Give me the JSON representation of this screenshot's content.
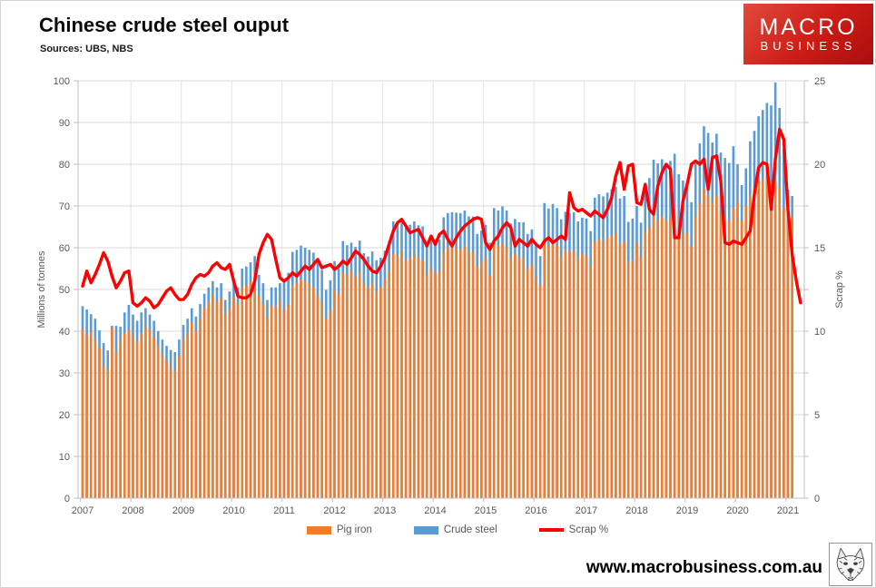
{
  "header": {
    "title": "Chinese crude steel ouput",
    "sources": "Sources: UBS, NBS"
  },
  "logo": {
    "line1": "MACRO",
    "line2": "BUSINESS",
    "bg_color": "#cc1c15",
    "text_color": "#ffffff"
  },
  "footer": {
    "url": "www.macrobusiness.com.au",
    "wolf_icon": "wolf-sketch"
  },
  "chart_data": {
    "type": "bar+line",
    "title": "Chinese crude steel ouput",
    "x_frequency": "monthly",
    "x_start": "2007-01",
    "x_year_labels": [
      "2007",
      "2008",
      "2009",
      "2010",
      "2011",
      "2012",
      "2013",
      "2014",
      "2015",
      "2016",
      "2017",
      "2018",
      "2019",
      "2020",
      "2021"
    ],
    "left_axis": {
      "title": "Millions of tonnes",
      "min": 0,
      "max": 100,
      "step": 10,
      "tick_labels": [
        "0",
        "10",
        "20",
        "30",
        "40",
        "50",
        "60",
        "70",
        "80",
        "90",
        "100"
      ]
    },
    "right_axis": {
      "title": "Scrap %",
      "min": 0,
      "max": 25,
      "step": 5,
      "tick_labels": [
        "0",
        "5",
        "10",
        "15",
        "20",
        "25"
      ]
    },
    "grid": true,
    "legend_position": "bottom",
    "colors": {
      "grid": "#d9d9d9",
      "grid_vertical": "#e4e4e4",
      "axis": "#bfbfbf",
      "tick_text": "#595959"
    },
    "series": [
      {
        "name": "Pig iron",
        "type": "bar",
        "axis": "left",
        "color": "#ED7D31",
        "values": [
          40.5,
          39.1,
          40.0,
          38.0,
          35.9,
          31.8,
          30.7,
          40.9,
          35.1,
          37.6,
          39.4,
          40.4,
          39.0,
          37.5,
          39.5,
          41.0,
          40.5,
          38.5,
          36.5,
          34.5,
          33.0,
          31.0,
          30.5,
          34.0,
          38.0,
          39.5,
          42.0,
          40.0,
          43.0,
          45.5,
          47.0,
          48.5,
          47.0,
          48.0,
          44.0,
          45.5,
          48.0,
          46.5,
          50.5,
          51.0,
          52.0,
          53.0,
          48.5,
          46.5,
          43.5,
          46.0,
          46.0,
          47.0,
          45.0,
          46.5,
          51.0,
          51.5,
          52.5,
          52.0,
          51.5,
          50.5,
          48.5,
          47.0,
          43.0,
          45.0,
          50.0,
          49.0,
          54.0,
          53.5,
          54.5,
          53.0,
          54.0,
          51.5,
          50.5,
          51.5,
          49.5,
          50.5,
          52.5,
          54.5,
          58.5,
          58.0,
          59.0,
          57.0,
          57.5,
          58.5,
          57.5,
          57.0,
          53.5,
          55.0,
          54.0,
          54.5,
          59.0,
          60.0,
          60.0,
          60.0,
          59.5,
          60.5,
          59.0,
          59.0,
          55.5,
          56.5,
          57.5,
          53.5,
          61.0,
          60.5,
          61.0,
          60.0,
          57.5,
          58.5,
          57.5,
          57.5,
          55.0,
          56.0,
          53.0,
          51.0,
          62.0,
          60.5,
          61.5,
          60.5,
          58.0,
          59.5,
          59.0,
          59.5,
          57.5,
          58.5,
          58.0,
          55.5,
          61.5,
          62.0,
          61.5,
          62.5,
          63.0,
          63.5,
          61.0,
          61.5,
          56.5,
          57.0,
          61.0,
          58.0,
          63.5,
          65.0,
          67.5,
          66.5,
          67.5,
          66.5,
          67.0,
          68.5,
          64.5,
          63.5,
          63.5,
          60.5,
          67.5,
          70.5,
          74.0,
          72.5,
          71.0,
          72.5,
          68.5,
          67.5,
          66.5,
          69.5,
          71.0,
          66.5,
          70.0,
          72.5,
          74.0,
          76.0,
          76.5,
          77.0,
          75.7,
          76.1,
          74.5,
          69.5,
          70.0,
          67.5
        ]
      },
      {
        "name": "Crude steel",
        "type": "bar",
        "axis": "left",
        "color": "#5B9BD5",
        "values": [
          46.0,
          45.2,
          44.1,
          43.0,
          40.2,
          37.2,
          35.4,
          41.3,
          41.3,
          41.1,
          44.5,
          46.3,
          44.0,
          42.5,
          44.5,
          45.5,
          44.0,
          42.5,
          40.0,
          38.0,
          36.5,
          35.5,
          35.0,
          38.0,
          41.5,
          43.0,
          45.5,
          43.5,
          46.5,
          49.0,
          50.5,
          52.0,
          50.5,
          51.5,
          47.5,
          49.5,
          52.0,
          50.5,
          55.0,
          55.5,
          56.5,
          58.0,
          53.5,
          51.5,
          47.5,
          50.5,
          50.5,
          51.5,
          52.5,
          54.0,
          59.0,
          59.5,
          60.5,
          60.0,
          59.5,
          58.8,
          56.7,
          54.7,
          49.9,
          52.2,
          56.8,
          55.9,
          61.6,
          60.6,
          61.2,
          60.2,
          61.7,
          58.7,
          57.9,
          59.1,
          57.0,
          57.6,
          59.3,
          61.5,
          66.3,
          65.7,
          67.0,
          64.7,
          65.5,
          66.3,
          65.4,
          65.1,
          60.9,
          62.4,
          61.6,
          62.0,
          67.3,
          68.3,
          68.5,
          68.4,
          68.3,
          68.9,
          67.5,
          67.5,
          63.3,
          64.1,
          65.5,
          61.2,
          69.5,
          68.9,
          69.9,
          68.9,
          65.8,
          66.9,
          66.1,
          66.1,
          63.3,
          64.4,
          60.5,
          58.0,
          70.7,
          69.4,
          70.5,
          69.5,
          66.8,
          68.6,
          68.2,
          68.5,
          66.3,
          67.2,
          67.0,
          64.0,
          72.0,
          72.8,
          72.3,
          73.2,
          74.0,
          74.6,
          71.8,
          72.4,
          66.2,
          67.0,
          70.0,
          66.0,
          74.0,
          76.7,
          81.1,
          80.2,
          81.2,
          80.3,
          80.8,
          82.5,
          77.6,
          76.1,
          75.0,
          70.9,
          80.3,
          85.0,
          89.1,
          87.5,
          85.2,
          87.3,
          82.8,
          81.5,
          80.3,
          84.3,
          80.0,
          75.0,
          79.0,
          85.5,
          88.0,
          91.5,
          93.0,
          94.7,
          94.1,
          99.6,
          93.5,
          83.7,
          73.9,
          72.4
        ]
      },
      {
        "name": "Scrap %",
        "type": "line",
        "axis": "right",
        "color": "#FE0000",
        "values": [
          12.7,
          13.6,
          12.9,
          13.4,
          14.0,
          14.7,
          14.2,
          13.3,
          12.6,
          13.0,
          13.5,
          13.6,
          11.7,
          11.5,
          11.7,
          12.0,
          11.8,
          11.4,
          11.6,
          12.0,
          12.4,
          12.6,
          12.2,
          11.9,
          11.9,
          12.2,
          12.8,
          13.2,
          13.4,
          13.3,
          13.5,
          13.9,
          14.1,
          13.8,
          13.7,
          14.0,
          13.0,
          12.1,
          12.0,
          12.0,
          12.2,
          13.0,
          14.6,
          15.3,
          15.8,
          15.5,
          14.3,
          13.2,
          13.0,
          13.2,
          13.5,
          13.3,
          13.6,
          13.9,
          13.7,
          14.0,
          14.3,
          13.8,
          13.9,
          14.0,
          13.7,
          13.9,
          14.2,
          14.0,
          14.4,
          14.8,
          14.6,
          14.3,
          13.9,
          13.6,
          13.5,
          13.9,
          14.4,
          15.2,
          16.0,
          16.5,
          16.7,
          16.3,
          15.9,
          16.0,
          16.1,
          15.6,
          15.1,
          15.7,
          15.2,
          15.8,
          16.0,
          15.5,
          15.1,
          15.6,
          16.0,
          16.3,
          16.5,
          16.7,
          16.8,
          16.7,
          15.3,
          14.9,
          15.4,
          15.7,
          16.2,
          16.5,
          16.2,
          15.1,
          15.5,
          15.3,
          15.1,
          15.5,
          15.2,
          15.0,
          15.4,
          15.6,
          15.3,
          15.5,
          15.7,
          15.5,
          18.3,
          17.4,
          17.2,
          17.3,
          17.1,
          16.9,
          17.2,
          17.0,
          16.8,
          17.3,
          18.0,
          19.3,
          20.1,
          18.5,
          19.9,
          20.0,
          17.7,
          17.6,
          18.8,
          17.3,
          17.0,
          18.7,
          19.5,
          20.0,
          19.7,
          15.6,
          15.6,
          17.8,
          18.8,
          20.0,
          20.2,
          20.0,
          20.3,
          18.5,
          20.4,
          20.5,
          19.0,
          15.3,
          15.2,
          15.4,
          15.3,
          15.2,
          15.6,
          16.0,
          18.2,
          19.8,
          20.1,
          20.0,
          17.3,
          20.3,
          22.1,
          21.5,
          17.3,
          14.6,
          13.0,
          11.7
        ]
      }
    ]
  }
}
